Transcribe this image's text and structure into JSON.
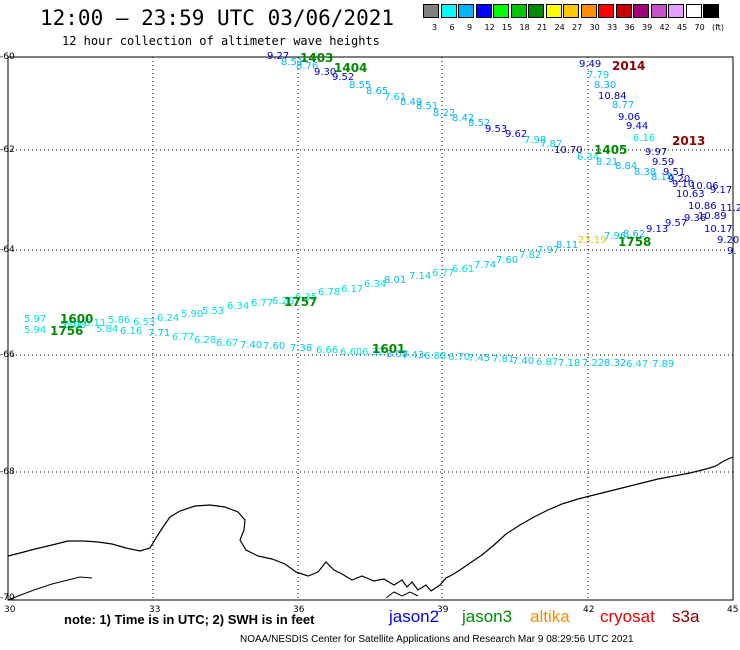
{
  "header": {
    "title": "12:00 – 23:59 UTC 03/06/2021",
    "subtitle": "12 hour collection of altimeter wave heights"
  },
  "colorbar": {
    "colors": [
      "#808080",
      "#00ffff",
      "#00b4ff",
      "#0000ff",
      "#00ff00",
      "#00c800",
      "#008c00",
      "#ffff00",
      "#ffc800",
      "#ff8c00",
      "#ff0000",
      "#c80000",
      "#a00078",
      "#c850c8",
      "#e6a0ff",
      "#ffffff",
      "#000000"
    ],
    "labels": [
      "3",
      "6",
      "9",
      "12",
      "15",
      "18",
      "21",
      "24",
      "27",
      "30",
      "33",
      "36",
      "39",
      "42",
      "45",
      "70",
      "(ft)"
    ]
  },
  "axes": {
    "y_labels": [
      "-60",
      "-62",
      "-64",
      "-66",
      "-68",
      "-70"
    ],
    "x_labels": [
      "30",
      "33",
      "36",
      "39",
      "42",
      "45"
    ]
  },
  "passes": [
    {
      "text": "1403",
      "color": "#008c00"
    },
    {
      "text": "1404",
      "color": "#008c00"
    },
    {
      "text": "2014",
      "color": "#8b0000"
    },
    {
      "text": "2013",
      "color": "#8b0000"
    },
    {
      "text": "1405",
      "color": "#008c00"
    },
    {
      "text": "1758",
      "color": "#008c00"
    },
    {
      "text": "1757",
      "color": "#008c00"
    },
    {
      "text": "1600",
      "color": "#008c00"
    },
    {
      "text": "1756",
      "color": "#008c00"
    },
    {
      "text": "1601",
      "color": "#008c00"
    }
  ],
  "wave_labels": [
    {
      "text": "9.27",
      "color": "#0000cc"
    },
    {
      "text": "8.51",
      "color": "#00b4ff"
    },
    {
      "text": "8.76",
      "color": "#00b4ff"
    },
    {
      "text": "9.30",
      "color": "#0000cc"
    },
    {
      "text": "9.52",
      "color": "#0000cc"
    },
    {
      "text": "8.55",
      "color": "#00b4ff"
    },
    {
      "text": "8.65",
      "color": "#00b4ff"
    },
    {
      "text": "7.61",
      "color": "#00c8e6"
    },
    {
      "text": "8.49",
      "color": "#00b4ff"
    },
    {
      "text": "8.51",
      "color": "#00b4ff"
    },
    {
      "text": "8.22",
      "color": "#00b4ff"
    },
    {
      "text": "8.42",
      "color": "#00b4ff"
    },
    {
      "text": "8.52",
      "color": "#00b4ff"
    },
    {
      "text": "9.53",
      "color": "#0000cc"
    },
    {
      "text": "9.62",
      "color": "#0000cc"
    },
    {
      "text": "7.98",
      "color": "#00c8e6"
    },
    {
      "text": "7.87",
      "color": "#00c8e6"
    },
    {
      "text": "10.70",
      "color": "#0000cc"
    },
    {
      "text": "9.49",
      "color": "#0000cc"
    },
    {
      "text": "7.79",
      "color": "#00c8e6"
    },
    {
      "text": "8.30",
      "color": "#00b4ff"
    },
    {
      "text": "10.84",
      "color": "#0000cc"
    },
    {
      "text": "8.77",
      "color": "#00b4ff"
    },
    {
      "text": "9.06",
      "color": "#0000cc"
    },
    {
      "text": "9.44",
      "color": "#0000cc"
    },
    {
      "text": "6.16",
      "color": "#00e0e0"
    },
    {
      "text": "9.97",
      "color": "#0000cc"
    },
    {
      "text": "6.34",
      "color": "#00e0e0"
    },
    {
      "text": "8.21",
      "color": "#00b4ff"
    },
    {
      "text": "8.84",
      "color": "#00b4ff"
    },
    {
      "text": "9.59",
      "color": "#0000cc"
    },
    {
      "text": "8.38",
      "color": "#00b4ff"
    },
    {
      "text": "9.51",
      "color": "#0000cc"
    },
    {
      "text": "8.18",
      "color": "#00b4ff"
    },
    {
      "text": "9.20",
      "color": "#0000cc"
    },
    {
      "text": "9.10",
      "color": "#0000cc"
    },
    {
      "text": "10.06",
      "color": "#0000cc"
    },
    {
      "text": "10.63",
      "color": "#0000cc"
    },
    {
      "text": "9.17",
      "color": "#0000cc"
    },
    {
      "text": "10.86",
      "color": "#0000cc"
    },
    {
      "text": "11.2",
      "color": "#0000cc"
    },
    {
      "text": "10.89",
      "color": "#0000cc"
    },
    {
      "text": "9.36",
      "color": "#0000cc"
    },
    {
      "text": "9.57",
      "color": "#0000cc"
    },
    {
      "text": "9.13",
      "color": "#0000cc"
    },
    {
      "text": "10.17",
      "color": "#0000cc"
    },
    {
      "text": "8.62",
      "color": "#00b4ff"
    },
    {
      "text": "7.96",
      "color": "#00c8e6"
    },
    {
      "text": "23.19",
      "color": "#e6c800"
    },
    {
      "text": "9.20",
      "color": "#0000cc"
    },
    {
      "text": "9.",
      "color": "#0000cc"
    },
    {
      "text": "8.11",
      "color": "#00b4ff"
    },
    {
      "text": "7.97",
      "color": "#00c8e6"
    },
    {
      "text": "7.82",
      "color": "#00c8e6"
    },
    {
      "text": "7.60",
      "color": "#00c8e6"
    },
    {
      "text": "7.74",
      "color": "#00c8e6"
    },
    {
      "text": "6.61",
      "color": "#00e0e0"
    },
    {
      "text": "6.77",
      "color": "#00e0e0"
    },
    {
      "text": "7.14",
      "color": "#00c8e6"
    },
    {
      "text": "8.01",
      "color": "#00b4ff"
    },
    {
      "text": "6.34",
      "color": "#00e0e0"
    },
    {
      "text": "6.17",
      "color": "#00e0e0"
    },
    {
      "text": "6.78",
      "color": "#00e0e0"
    },
    {
      "text": "6.35",
      "color": "#00e0e0"
    },
    {
      "text": "6.26",
      "color": "#00e0e0"
    },
    {
      "text": "6.77",
      "color": "#00e0e0"
    },
    {
      "text": "6.34",
      "color": "#00e0e0"
    },
    {
      "text": "5.53",
      "color": "#00e0e0"
    },
    {
      "text": "5.90",
      "color": "#00e0e0"
    },
    {
      "text": "6.24",
      "color": "#00e0e0"
    },
    {
      "text": "6.53",
      "color": "#00e0e0"
    },
    {
      "text": "5.86",
      "color": "#00e0e0"
    },
    {
      "text": "6.11",
      "color": "#00e0e0"
    },
    {
      "text": "5.94",
      "color": "#00e0e0"
    },
    {
      "text": "5.97",
      "color": "#00e0e0"
    },
    {
      "text": "5.94",
      "color": "#00e0e0"
    },
    {
      "text": "6.03",
      "color": "#00e0e0"
    },
    {
      "text": "5.84",
      "color": "#00e0e0"
    },
    {
      "text": "6.16",
      "color": "#00e0e0"
    },
    {
      "text": "7.71",
      "color": "#00c8e6"
    },
    {
      "text": "6.77",
      "color": "#00e0e0"
    },
    {
      "text": "6.28",
      "color": "#00e0e0"
    },
    {
      "text": "6.67",
      "color": "#00e0e0"
    },
    {
      "text": "7.40",
      "color": "#00c8e6"
    },
    {
      "text": "7.60",
      "color": "#00c8e6"
    },
    {
      "text": "7.38",
      "color": "#00c8e6"
    },
    {
      "text": "6.66",
      "color": "#00e0e0"
    },
    {
      "text": "6.60",
      "color": "#00e0e0"
    },
    {
      "text": "6.32",
      "color": "#00e0e0"
    },
    {
      "text": "8.08",
      "color": "#00b4ff"
    },
    {
      "text": "7.43",
      "color": "#00c8e6"
    },
    {
      "text": "6.88",
      "color": "#00e0e0"
    },
    {
      "text": "6.70",
      "color": "#00e0e0"
    },
    {
      "text": "7.45",
      "color": "#00c8e6"
    },
    {
      "text": "7.81",
      "color": "#00c8e6"
    },
    {
      "text": "7.40",
      "color": "#00c8e6"
    },
    {
      "text": "6.87",
      "color": "#00e0e0"
    },
    {
      "text": "7.18",
      "color": "#00c8e6"
    },
    {
      "text": "7.22",
      "color": "#00c8e6"
    },
    {
      "text": "8.32",
      "color": "#00b4ff"
    },
    {
      "text": "6.47",
      "color": "#00e0e0"
    },
    {
      "text": "7.89",
      "color": "#00c8e6"
    }
  ],
  "footer": {
    "note": "note:  1) Time is in UTC;  2) SWH is in feet",
    "satellites": [
      {
        "name": "jason2",
        "color": "#0000ff"
      },
      {
        "name": "jason3",
        "color": "#008c00"
      },
      {
        "name": "altika",
        "color": "#ff8c00"
      },
      {
        "name": "cryosat",
        "color": "#e60000"
      },
      {
        "name": "s3a",
        "color": "#8b0000"
      }
    ],
    "credit": "NOAA/NESDIS Center for Satellite Applications and Research    Mar  9 08:29:56 UTC 2021"
  }
}
